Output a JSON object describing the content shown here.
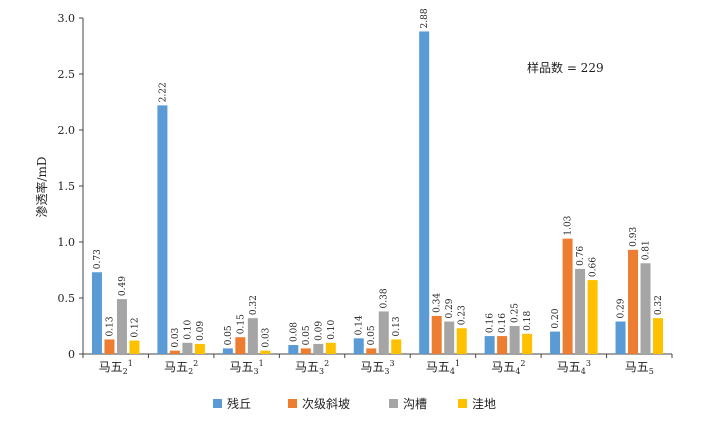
{
  "chart_data": {
    "type": "bar",
    "title": "",
    "xlabel": "",
    "ylabel": "渗透率/mD",
    "ylim": [
      0,
      3.0
    ],
    "yticks": [
      "0",
      "0.5",
      "1.0",
      "1.5",
      "2.0",
      "2.5",
      "3.0"
    ],
    "grid": false,
    "legend_position": "bottom",
    "annotation": "样品数 = 229",
    "categories": [
      {
        "base": "马五",
        "sub": "2",
        "sup": "1"
      },
      {
        "base": "马五",
        "sub": "2",
        "sup": "2"
      },
      {
        "base": "马五",
        "sub": "3",
        "sup": "1"
      },
      {
        "base": "马五",
        "sub": "3",
        "sup": "2"
      },
      {
        "base": "马五",
        "sub": "3",
        "sup": "3"
      },
      {
        "base": "马五",
        "sub": "4",
        "sup": "1"
      },
      {
        "base": "马五",
        "sub": "4",
        "sup": "2"
      },
      {
        "base": "马五",
        "sub": "4",
        "sup": "3"
      },
      {
        "base": "马五",
        "sub": "5",
        "sup": ""
      }
    ],
    "series": [
      {
        "name": "残丘",
        "color": "#5b9bd5",
        "values": [
          0.73,
          2.22,
          0.05,
          0.08,
          0.14,
          2.88,
          0.16,
          0.2,
          0.29
        ],
        "labels": [
          "0.73",
          "2.22",
          "0.05",
          "0.08",
          "0.14",
          "2.88",
          "0.16",
          "0.20",
          "0.29"
        ]
      },
      {
        "name": "次级斜坡",
        "color": "#ed7d31",
        "values": [
          0.13,
          0.03,
          0.15,
          0.05,
          0.05,
          0.34,
          0.16,
          1.03,
          0.93
        ],
        "labels": [
          "0.13",
          "0.03",
          "0.15",
          "0.05",
          "0.05",
          "0.34",
          "0.16",
          "1.03",
          "0.93"
        ]
      },
      {
        "name": "沟槽",
        "color": "#a5a5a5",
        "values": [
          0.49,
          0.1,
          0.32,
          0.09,
          0.38,
          0.29,
          0.25,
          0.76,
          0.81
        ],
        "labels": [
          "0.49",
          "0.10",
          "0.32",
          "0.09",
          "0.38",
          "0.29",
          "0.25",
          "0.76",
          "0.81"
        ]
      },
      {
        "name": "洼地",
        "color": "#ffc000",
        "values": [
          0.12,
          0.09,
          0.03,
          0.1,
          0.13,
          0.23,
          0.18,
          0.66,
          0.32
        ],
        "labels": [
          "0.12",
          "0.09",
          "0.03",
          "0.10",
          "0.13",
          "0.23",
          "0.18",
          "0.66",
          "0.32"
        ]
      }
    ]
  }
}
